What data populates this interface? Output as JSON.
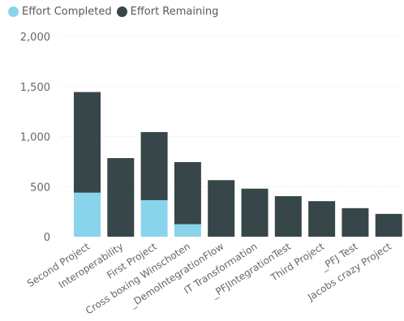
{
  "legend": {
    "items": [
      {
        "label": "Effort Completed",
        "color": "#8ad4eb"
      },
      {
        "label": "Effort Remaining",
        "color": "#374649"
      }
    ]
  },
  "chart_data": {
    "type": "bar",
    "stacked": true,
    "categories": [
      "Second Project",
      "Interoperability",
      "First Project",
      "Cross boxing Winschoten",
      "_DemoIntegrationFlow",
      "IT Transformation",
      "_PFJIntegrationTest",
      "Third Project",
      "_PFJ Test",
      "Jacobs crazy Project"
    ],
    "series": [
      {
        "name": "Effort Completed",
        "color": "#8ad4eb",
        "values": [
          440,
          0,
          365,
          125,
          0,
          0,
          0,
          0,
          0,
          0
        ]
      },
      {
        "name": "Effort Remaining",
        "color": "#374649",
        "values": [
          1005,
          785,
          680,
          620,
          565,
          480,
          405,
          355,
          285,
          228
        ]
      }
    ],
    "ylim": [
      0,
      2000
    ],
    "yticks": [
      "0",
      "500",
      "1,000",
      "1,500",
      "2,000"
    ],
    "ytick_values": [
      0,
      500,
      1000,
      1500,
      2000
    ],
    "grid": true,
    "legend_position": "top-left"
  }
}
